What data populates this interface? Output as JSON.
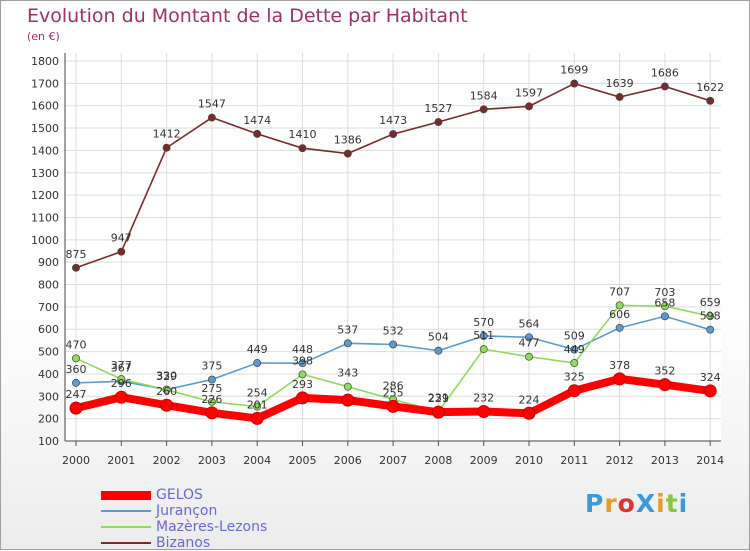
{
  "title": "Evolution du Montant de la Dette par Habitant",
  "unit": "(en €)",
  "logo": {
    "text": "ProXiti",
    "colors": [
      "#3a9ad9",
      "#e89a2a",
      "#e0342c",
      "#3a9ad9",
      "#e89a2a",
      "#8cc63e",
      "#3a9ad9"
    ]
  },
  "chart_data": {
    "type": "line",
    "title": "Evolution du Montant de la Dette par Habitant",
    "ylabel": "(en €)",
    "xlabel": "",
    "ylim": [
      100,
      1800
    ],
    "grid": true,
    "legend_position": "bottom-left",
    "x": [
      "2000",
      "2001",
      "2002",
      "2003",
      "2004",
      "2005",
      "2006",
      "2007",
      "2008",
      "2009",
      "2010",
      "2011",
      "2012",
      "2013",
      "2014"
    ],
    "yticks": [
      "100",
      "200",
      "300",
      "400",
      "500",
      "600",
      "700",
      "800",
      "900",
      "1000",
      "1100",
      "1200",
      "1300",
      "1400",
      "1500",
      "1600",
      "1700",
      "1800"
    ],
    "series": [
      {
        "name": "GELOS",
        "color": "#ff0000",
        "values": [
          247,
          296,
          260,
          226,
          201,
          293,
          283,
          255,
          229,
          232,
          224,
          325,
          378,
          352,
          324
        ],
        "labels": [
          "247",
          "296",
          "260",
          "226",
          "201",
          "293",
          "",
          "255",
          "229",
          "232",
          "224",
          "325",
          "378",
          "352",
          "324"
        ]
      },
      {
        "name": "Jurançon",
        "color": "#5a9bd4",
        "values": [
          360,
          367,
          330,
          375,
          449,
          448,
          537,
          532,
          504,
          570,
          564,
          509,
          606,
          658,
          598
        ],
        "labels": [
          "360",
          "367",
          "330",
          "375",
          "449",
          "448",
          "537",
          "532",
          "504",
          "570",
          "564",
          "509",
          "606",
          "658",
          "598"
        ]
      },
      {
        "name": "Mazères-Lezons",
        "color": "#8fdc5a",
        "values": [
          470,
          377,
          329,
          275,
          254,
          398,
          343,
          286,
          231,
          511,
          477,
          449,
          707,
          703,
          659
        ],
        "labels": [
          "470",
          "377",
          "329",
          "275",
          "254",
          "398",
          "343",
          "286",
          "231",
          "511",
          "477",
          "449",
          "707",
          "703",
          "659"
        ]
      },
      {
        "name": "Bizanos",
        "color": "#7b2a2a",
        "values": [
          875,
          947,
          1412,
          1547,
          1474,
          1410,
          1386,
          1473,
          1527,
          1584,
          1597,
          1699,
          1639,
          1686,
          1622
        ],
        "labels": [
          "875",
          "947",
          "1412",
          "1547",
          "1474",
          "1410",
          "1386",
          "1473",
          "1527",
          "1584",
          "1597",
          "1699",
          "1639",
          "1686",
          "1622"
        ]
      }
    ]
  }
}
